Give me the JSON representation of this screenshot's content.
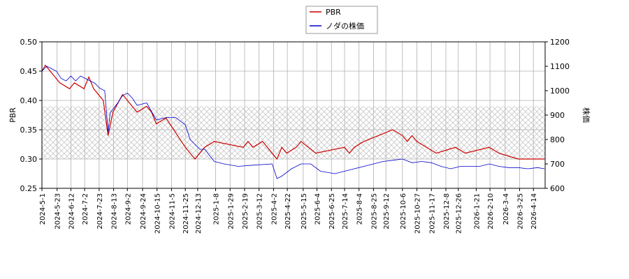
{
  "chart_data": {
    "type": "line",
    "y_label": "PBR",
    "y2_label": "株価",
    "xlim": [
      "2024-5-1",
      "2026-5-1"
    ],
    "xticks": [
      "2024-5-1",
      "2024-5-23",
      "2024-6-12",
      "2024-7-2",
      "2024-7-23",
      "2024-8-13",
      "2024-9-2",
      "2024-9-24",
      "2024-10-15",
      "2024-11-5",
      "2024-11-25",
      "2024-12-13",
      "2025-1-8",
      "2025-1-29",
      "2025-2-19",
      "2025-3-12",
      "2025-4-2",
      "2025-4-22",
      "2025-5-15",
      "2025-6-4",
      "2025-6-25",
      "2025-7-14",
      "2025-8-4",
      "2025-8-25",
      "2025-9-12",
      "2025-10-6",
      "2025-10-27",
      "2025-11-17",
      "2025-12-8",
      "2025-12-26",
      "2026-1-21",
      "2026-2-10",
      "2026-3-4",
      "2026-3-25",
      "2026-4-14"
    ],
    "ylim": [
      0.25,
      0.5
    ],
    "yticks": [
      {
        "value": 0.5,
        "label": "0.50"
      },
      0.45,
      {
        "value": 0.4,
        "label": "0.40"
      },
      0.35,
      {
        "value": 0.3,
        "label": "0.30"
      },
      0.25
    ],
    "y2lim": [
      600,
      1200
    ],
    "y2ticks": [
      1200,
      1100,
      1000,
      900,
      800,
      700,
      600
    ],
    "shaded_range": [
      0.3,
      0.39
    ],
    "grid": true,
    "legend": "top",
    "series": [
      {
        "name": "PBR",
        "color": "#cc0000",
        "axis": "y",
        "x": [
          "2024-5-1",
          "2024-5-6",
          "2024-5-13",
          "2024-5-20",
          "2024-5-27",
          "2024-6-10",
          "2024-6-17",
          "2024-7-1",
          "2024-7-8",
          "2024-7-15",
          "2024-7-22",
          "2024-7-29",
          "2024-8-5",
          "2024-8-12",
          "2024-8-26",
          "2024-9-2",
          "2024-9-16",
          "2024-9-30",
          "2024-10-7",
          "2024-10-14",
          "2024-10-28",
          "2024-11-25",
          "2024-12-9",
          "2024-12-23",
          "2025-1-6",
          "2025-2-17",
          "2025-2-24",
          "2025-3-3",
          "2025-3-17",
          "2025-4-7",
          "2025-4-14",
          "2025-4-21",
          "2025-5-5",
          "2025-5-12",
          "2025-6-2",
          "2025-7-14",
          "2025-7-21",
          "2025-7-28",
          "2025-8-11",
          "2025-9-1",
          "2025-9-22",
          "2025-10-6",
          "2025-10-13",
          "2025-10-20",
          "2025-10-27",
          "2025-11-24",
          "2025-12-22",
          "2026-1-5",
          "2026-2-9",
          "2026-2-23",
          "2026-3-23",
          "2026-4-30"
        ],
        "values": [
          0.45,
          0.46,
          0.45,
          0.44,
          0.43,
          0.42,
          0.43,
          0.42,
          0.44,
          0.42,
          0.41,
          0.4,
          0.34,
          0.38,
          0.41,
          0.4,
          0.38,
          0.39,
          0.38,
          0.36,
          0.37,
          0.32,
          0.3,
          0.32,
          0.33,
          0.32,
          0.33,
          0.32,
          0.33,
          0.3,
          0.32,
          0.31,
          0.32,
          0.33,
          0.31,
          0.32,
          0.31,
          0.32,
          0.33,
          0.34,
          0.35,
          0.34,
          0.33,
          0.34,
          0.33,
          0.31,
          0.32,
          0.31,
          0.32,
          0.31,
          0.3,
          0.3
        ]
      },
      {
        "name": "ノダの株価",
        "color": "#0000cc",
        "axis": "y2",
        "x": [
          "2024-5-1",
          "2024-5-8",
          "2024-5-15",
          "2024-5-22",
          "2024-5-29",
          "2024-6-5",
          "2024-6-12",
          "2024-6-19",
          "2024-6-26",
          "2024-7-3",
          "2024-7-10",
          "2024-7-17",
          "2024-7-24",
          "2024-7-31",
          "2024-8-5",
          "2024-8-8",
          "2024-8-19",
          "2024-8-26",
          "2024-9-2",
          "2024-9-9",
          "2024-9-16",
          "2024-9-30",
          "2024-10-14",
          "2024-10-28",
          "2024-11-11",
          "2024-11-25",
          "2024-12-2",
          "2024-12-16",
          "2024-12-23",
          "2025-1-6",
          "2025-1-20",
          "2025-2-10",
          "2025-3-3",
          "2025-3-31",
          "2025-4-7",
          "2025-4-14",
          "2025-4-28",
          "2025-5-12",
          "2025-5-26",
          "2025-6-9",
          "2025-6-30",
          "2025-7-14",
          "2025-7-28",
          "2025-8-11",
          "2025-8-25",
          "2025-9-8",
          "2025-9-22",
          "2025-10-6",
          "2025-10-20",
          "2025-11-3",
          "2025-11-17",
          "2025-12-1",
          "2025-12-15",
          "2025-12-29",
          "2026-1-12",
          "2026-1-26",
          "2026-2-9",
          "2026-2-23",
          "2026-3-9",
          "2026-3-23",
          "2026-4-6",
          "2026-4-20",
          "2026-4-30"
        ],
        "values": [
          1080,
          1100,
          1090,
          1080,
          1050,
          1040,
          1060,
          1040,
          1060,
          1050,
          1040,
          1030,
          1010,
          1000,
          830,
          910,
          950,
          980,
          990,
          970,
          940,
          950,
          880,
          890,
          890,
          860,
          800,
          760,
          760,
          710,
          700,
          690,
          695,
          700,
          640,
          650,
          680,
          700,
          700,
          670,
          660,
          670,
          680,
          690,
          700,
          710,
          715,
          720,
          705,
          710,
          705,
          690,
          680,
          690,
          690,
          690,
          700,
          690,
          685,
          685,
          680,
          685,
          680
        ]
      }
    ]
  }
}
